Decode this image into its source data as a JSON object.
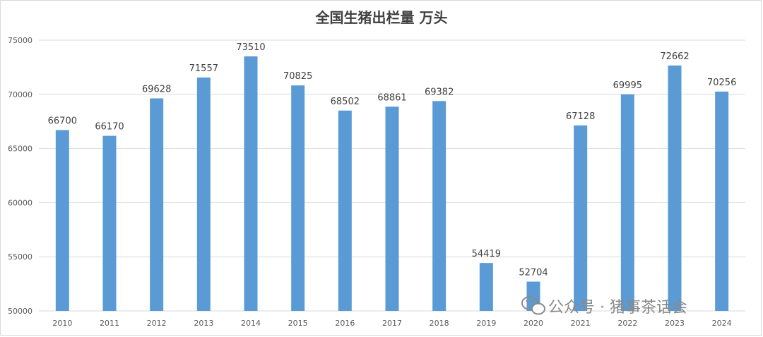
{
  "chart_data": {
    "type": "bar",
    "title": "全国生猪出栏量 万头",
    "categories": [
      "2010",
      "2011",
      "2012",
      "2013",
      "2014",
      "2015",
      "2016",
      "2017",
      "2018",
      "2019",
      "2020",
      "2021",
      "2022",
      "2023",
      "2024"
    ],
    "values": [
      66700,
      66170,
      69628,
      71557,
      73510,
      70825,
      68502,
      68861,
      69382,
      54419,
      52704,
      67128,
      69995,
      72662,
      70256
    ],
    "ylim": [
      50000,
      75000
    ],
    "yticks": [
      50000,
      55000,
      60000,
      65000,
      70000,
      75000
    ],
    "grid": true,
    "legend": "none",
    "bar_color": "#5b9bd5",
    "grid_color": "#d9d9d9"
  },
  "watermark": {
    "text": "公众号 · 猪事茶话会",
    "icon": "wechat-icon"
  }
}
